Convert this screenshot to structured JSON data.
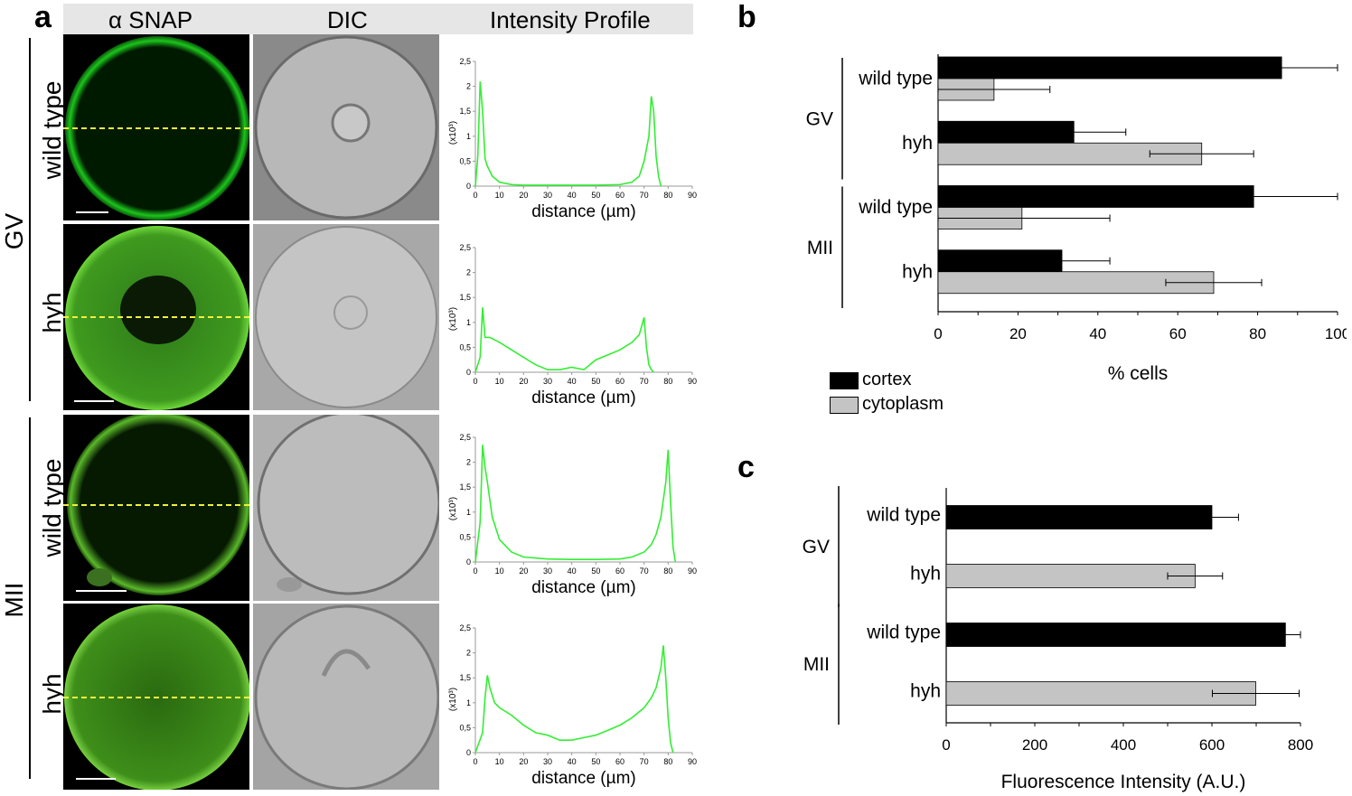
{
  "panel_a": {
    "letter": "a",
    "columns": [
      "α SNAP",
      "DIC",
      "Intensity Profile"
    ],
    "stage_labels": [
      "GV",
      "MII"
    ],
    "rows": [
      {
        "label": "wild type",
        "stage": "GV"
      },
      {
        "label": "hyh",
        "stage": "GV"
      },
      {
        "label": "wild type",
        "stage": "MII"
      },
      {
        "label": "hyh",
        "stage": "MII"
      }
    ]
  },
  "panel_b": {
    "letter": "b",
    "legend": [
      "cortex",
      "cytoplasm"
    ]
  },
  "panel_c": {
    "letter": "c"
  },
  "colors": {
    "cortex": "#000000",
    "cytoplasm": "#c4c4c4",
    "profile": "#33ee33",
    "dashed_line": "#f0f040"
  },
  "chart_data": [
    {
      "type": "line",
      "panel": "a-profile-GV-wild-type",
      "xlabel": "distance (µm)",
      "ylabel": "(x10³)",
      "xticks": [
        0,
        10,
        20,
        30,
        40,
        50,
        60,
        70,
        80,
        90
      ],
      "yticks": [
        "0",
        "0,5",
        "1",
        "1,5",
        "2",
        "2,5"
      ],
      "xlim": [
        0,
        90
      ],
      "ylim": [
        0,
        2.5
      ],
      "x": [
        0,
        1,
        2,
        3,
        4,
        5,
        7,
        10,
        15,
        20,
        30,
        40,
        50,
        60,
        65,
        68,
        70,
        72,
        73,
        74,
        75,
        76,
        77
      ],
      "y": [
        0,
        0.6,
        2.1,
        1.5,
        0.55,
        0.4,
        0.2,
        0.08,
        0.03,
        0.02,
        0.02,
        0.02,
        0.02,
        0.03,
        0.08,
        0.2,
        0.5,
        1.0,
        1.8,
        1.5,
        0.6,
        0.2,
        0
      ]
    },
    {
      "type": "line",
      "panel": "a-profile-GV-hyh",
      "xlabel": "distance (µm)",
      "ylabel": "(x10³)",
      "xticks": [
        0,
        10,
        20,
        30,
        40,
        50,
        60,
        70,
        80,
        90
      ],
      "yticks": [
        "0",
        "0,5",
        "1",
        "1,5",
        "2",
        "2,5"
      ],
      "xlim": [
        0,
        90
      ],
      "ylim": [
        0,
        2.5
      ],
      "x": [
        0,
        2,
        3,
        4,
        6,
        10,
        15,
        20,
        25,
        30,
        35,
        40,
        45,
        50,
        55,
        60,
        65,
        68,
        70,
        71,
        72,
        73,
        74
      ],
      "y": [
        0,
        0.3,
        1.3,
        0.7,
        0.7,
        0.6,
        0.45,
        0.3,
        0.15,
        0.05,
        0.05,
        0.1,
        0.05,
        0.25,
        0.35,
        0.45,
        0.6,
        0.75,
        1.1,
        0.5,
        0.15,
        0.05,
        0
      ]
    },
    {
      "type": "line",
      "panel": "a-profile-MII-wild-type",
      "xlabel": "distance (µm)",
      "ylabel": "(x10³)",
      "xticks": [
        0,
        10,
        20,
        30,
        40,
        50,
        60,
        70,
        80,
        90
      ],
      "yticks": [
        "0",
        "0,5",
        "1",
        "1,5",
        "2",
        "2,5"
      ],
      "xlim": [
        0,
        90
      ],
      "ylim": [
        0,
        2.5
      ],
      "x": [
        0,
        2,
        3,
        4,
        5,
        7,
        10,
        15,
        20,
        30,
        40,
        50,
        60,
        65,
        70,
        73,
        75,
        77,
        79,
        80,
        81,
        82,
        83
      ],
      "y": [
        0,
        0.8,
        2.35,
        1.9,
        1.6,
        0.9,
        0.45,
        0.2,
        0.1,
        0.06,
        0.05,
        0.05,
        0.06,
        0.1,
        0.2,
        0.35,
        0.55,
        0.9,
        1.6,
        2.25,
        1.2,
        0.3,
        0
      ]
    },
    {
      "type": "line",
      "panel": "a-profile-MII-hyh",
      "xlabel": "distance (µm)",
      "ylabel": "(x10³)",
      "xticks": [
        0,
        10,
        20,
        30,
        40,
        50,
        60,
        70,
        80,
        90
      ],
      "yticks": [
        "0",
        "0,5",
        "1",
        "1,5",
        "2",
        "2,5"
      ],
      "xlim": [
        0,
        90
      ],
      "ylim": [
        0,
        2.5
      ],
      "x": [
        0,
        3,
        4,
        5,
        6,
        8,
        10,
        15,
        20,
        25,
        30,
        35,
        40,
        45,
        50,
        55,
        60,
        65,
        70,
        73,
        75,
        77,
        78,
        79,
        80,
        81,
        82
      ],
      "y": [
        0,
        0.4,
        1.1,
        1.55,
        1.3,
        1.0,
        0.9,
        0.75,
        0.55,
        0.4,
        0.35,
        0.25,
        0.25,
        0.3,
        0.35,
        0.45,
        0.55,
        0.7,
        0.9,
        1.1,
        1.3,
        1.7,
        2.15,
        1.5,
        0.7,
        0.2,
        0
      ]
    },
    {
      "type": "bar",
      "orientation": "horizontal",
      "panel": "b",
      "xlabel": "% cells",
      "xlim": [
        0,
        100
      ],
      "xticks": [
        0,
        20,
        40,
        60,
        80,
        100
      ],
      "group_labels": [
        "GV",
        "MII"
      ],
      "categories": [
        "wild type",
        "hyh",
        "wild type",
        "hyh"
      ],
      "series": [
        {
          "name": "cortex",
          "values": [
            86,
            34,
            79,
            31
          ],
          "errors": [
            14,
            13,
            21,
            12
          ]
        },
        {
          "name": "cytoplasm",
          "values": [
            14,
            66,
            21,
            69
          ],
          "errors": [
            14,
            13,
            22,
            12
          ]
        }
      ],
      "legend": "bottom-left"
    },
    {
      "type": "bar",
      "orientation": "horizontal",
      "panel": "c",
      "xlabel": "Fluorescence Intensity (A.U.)",
      "xlim": [
        0,
        800
      ],
      "xticks": [
        0,
        200,
        400,
        600,
        800
      ],
      "group_labels": [
        "GV",
        "MII"
      ],
      "categories": [
        "wild type",
        "hyh",
        "wild type",
        "hyh"
      ],
      "values": [
        600,
        562,
        766,
        699
      ],
      "errors": [
        60,
        62,
        58,
        98
      ],
      "bar_colors": [
        "cortex",
        "cytoplasm",
        "cortex",
        "cytoplasm"
      ]
    }
  ]
}
